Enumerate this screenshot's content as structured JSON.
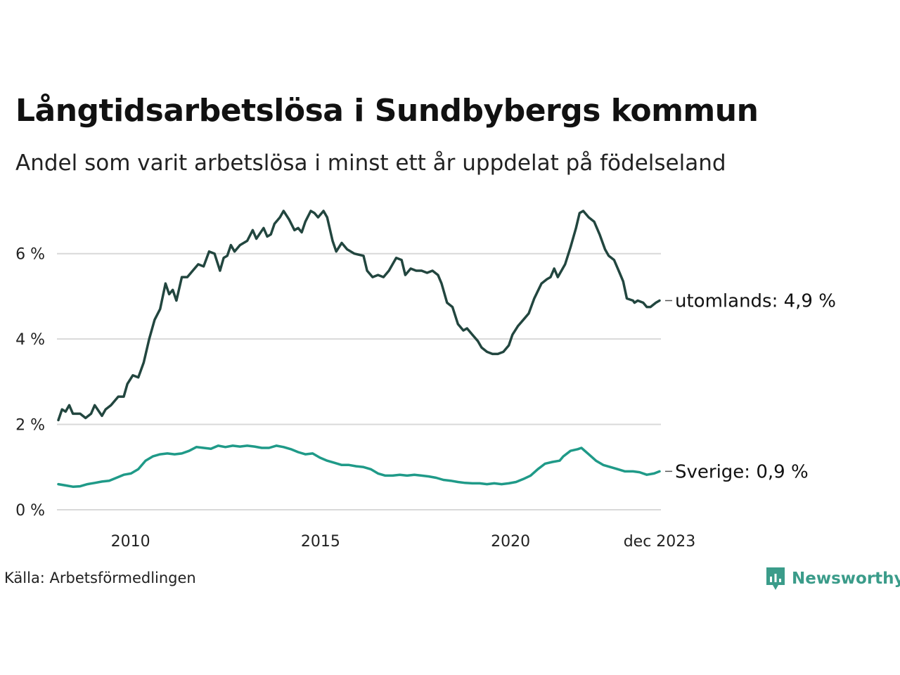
{
  "title": "Långtidsarbetslösa i Sundbybergs kommun",
  "subtitle": "Andel som varit arbetslösa i minst ett år uppdelat på födelseland",
  "source": "Källa: Arbetsförmedlingen",
  "brand": "Newsworthy",
  "colors": {
    "utomlands": "#22463f",
    "sverige": "#1f9a88",
    "grid": "#d9d9d9",
    "brand": "#3b9c8a"
  },
  "chart_data": {
    "type": "line",
    "title": "Långtidsarbetslösa i Sundbybergs kommun",
    "xlabel": "",
    "ylabel": "",
    "xlim": [
      2008.1,
      2023.92
    ],
    "ylim": [
      0,
      7
    ],
    "y_ticks": [
      0,
      2,
      4,
      6
    ],
    "y_tick_labels": [
      "0 %",
      "2 %",
      "4 %",
      "6 %"
    ],
    "x_ticks": [
      2010,
      2015,
      2020,
      2023.92
    ],
    "x_tick_labels": [
      "2010",
      "2015",
      "2020",
      "dec 2023"
    ],
    "grid": true,
    "series": [
      {
        "name": "utomlands",
        "end_label": "utomlands: 4,9 %",
        "points": [
          [
            2008.1,
            2.1
          ],
          [
            2008.2,
            2.35
          ],
          [
            2008.3,
            2.3
          ],
          [
            2008.4,
            2.45
          ],
          [
            2008.5,
            2.25
          ],
          [
            2008.7,
            2.25
          ],
          [
            2008.85,
            2.15
          ],
          [
            2009.0,
            2.25
          ],
          [
            2009.1,
            2.45
          ],
          [
            2009.3,
            2.2
          ],
          [
            2009.4,
            2.35
          ],
          [
            2009.55,
            2.45
          ],
          [
            2009.75,
            2.65
          ],
          [
            2009.9,
            2.65
          ],
          [
            2010.0,
            2.95
          ],
          [
            2010.15,
            3.15
          ],
          [
            2010.3,
            3.1
          ],
          [
            2010.45,
            3.45
          ],
          [
            2010.6,
            4.0
          ],
          [
            2010.75,
            4.45
          ],
          [
            2010.9,
            4.7
          ],
          [
            2011.05,
            5.3
          ],
          [
            2011.15,
            5.05
          ],
          [
            2011.25,
            5.15
          ],
          [
            2011.35,
            4.9
          ],
          [
            2011.5,
            5.45
          ],
          [
            2011.65,
            5.45
          ],
          [
            2011.8,
            5.6
          ],
          [
            2011.95,
            5.75
          ],
          [
            2012.1,
            5.7
          ],
          [
            2012.25,
            6.05
          ],
          [
            2012.4,
            6.0
          ],
          [
            2012.55,
            5.6
          ],
          [
            2012.65,
            5.9
          ],
          [
            2012.75,
            5.95
          ],
          [
            2012.85,
            6.2
          ],
          [
            2012.95,
            6.05
          ],
          [
            2013.1,
            6.2
          ],
          [
            2013.3,
            6.3
          ],
          [
            2013.45,
            6.55
          ],
          [
            2013.55,
            6.35
          ],
          [
            2013.75,
            6.6
          ],
          [
            2013.85,
            6.4
          ],
          [
            2013.95,
            6.45
          ],
          [
            2014.05,
            6.7
          ],
          [
            2014.2,
            6.85
          ],
          [
            2014.3,
            7.0
          ],
          [
            2014.45,
            6.8
          ],
          [
            2014.6,
            6.55
          ],
          [
            2014.7,
            6.6
          ],
          [
            2014.8,
            6.5
          ],
          [
            2014.9,
            6.75
          ],
          [
            2015.05,
            7.0
          ],
          [
            2015.15,
            6.95
          ],
          [
            2015.25,
            6.85
          ],
          [
            2015.4,
            7.0
          ],
          [
            2015.5,
            6.85
          ],
          [
            2015.65,
            6.3
          ],
          [
            2015.75,
            6.05
          ],
          [
            2015.9,
            6.25
          ],
          [
            2016.05,
            6.1
          ],
          [
            2016.25,
            6.0
          ],
          [
            2016.5,
            5.95
          ],
          [
            2016.6,
            5.6
          ],
          [
            2016.75,
            5.45
          ],
          [
            2016.9,
            5.5
          ],
          [
            2017.05,
            5.45
          ],
          [
            2017.2,
            5.6
          ],
          [
            2017.4,
            5.9
          ],
          [
            2017.55,
            5.85
          ],
          [
            2017.65,
            5.5
          ],
          [
            2017.8,
            5.65
          ],
          [
            2017.95,
            5.6
          ],
          [
            2018.1,
            5.6
          ],
          [
            2018.25,
            5.55
          ],
          [
            2018.4,
            5.6
          ],
          [
            2018.55,
            5.5
          ],
          [
            2018.65,
            5.3
          ],
          [
            2018.8,
            4.85
          ],
          [
            2018.95,
            4.75
          ],
          [
            2019.1,
            4.35
          ],
          [
            2019.25,
            4.2
          ],
          [
            2019.35,
            4.25
          ],
          [
            2019.5,
            4.1
          ],
          [
            2019.65,
            3.95
          ],
          [
            2019.75,
            3.8
          ],
          [
            2019.9,
            3.7
          ],
          [
            2020.05,
            3.65
          ],
          [
            2020.2,
            3.65
          ],
          [
            2020.35,
            3.7
          ],
          [
            2020.5,
            3.85
          ],
          [
            2020.6,
            4.1
          ],
          [
            2020.75,
            4.3
          ],
          [
            2020.9,
            4.45
          ],
          [
            2021.05,
            4.6
          ],
          [
            2021.2,
            4.95
          ],
          [
            2021.4,
            5.3
          ],
          [
            2021.55,
            5.4
          ],
          [
            2021.65,
            5.45
          ],
          [
            2021.75,
            5.65
          ],
          [
            2021.85,
            5.45
          ],
          [
            2022.05,
            5.75
          ],
          [
            2022.2,
            6.15
          ],
          [
            2022.35,
            6.6
          ],
          [
            2022.45,
            6.95
          ],
          [
            2022.55,
            7.0
          ],
          [
            2022.7,
            6.85
          ],
          [
            2022.85,
            6.75
          ],
          [
            2023.0,
            6.45
          ],
          [
            2023.15,
            6.1
          ],
          [
            2023.25,
            5.95
          ],
          [
            2023.4,
            5.85
          ],
          [
            2023.55,
            5.55
          ],
          [
            2023.65,
            5.35
          ],
          [
            2023.75,
            4.95
          ],
          [
            2023.92,
            4.9
          ],
          [
            2023.96,
            4.85
          ],
          [
            2024.05,
            4.9
          ],
          [
            2024.2,
            4.85
          ],
          [
            2024.3,
            4.75
          ],
          [
            2024.4,
            4.75
          ],
          [
            2024.55,
            4.85
          ],
          [
            2024.65,
            4.9
          ]
        ]
      },
      {
        "name": "Sverige",
        "end_label": "Sverige: 0,9 %",
        "points": [
          [
            2008.1,
            0.6
          ],
          [
            2008.3,
            0.57
          ],
          [
            2008.5,
            0.54
          ],
          [
            2008.7,
            0.55
          ],
          [
            2008.9,
            0.6
          ],
          [
            2009.1,
            0.63
          ],
          [
            2009.3,
            0.66
          ],
          [
            2009.5,
            0.68
          ],
          [
            2009.7,
            0.75
          ],
          [
            2009.9,
            0.82
          ],
          [
            2010.1,
            0.85
          ],
          [
            2010.3,
            0.95
          ],
          [
            2010.5,
            1.15
          ],
          [
            2010.7,
            1.25
          ],
          [
            2010.9,
            1.3
          ],
          [
            2011.1,
            1.32
          ],
          [
            2011.3,
            1.3
          ],
          [
            2011.5,
            1.32
          ],
          [
            2011.7,
            1.38
          ],
          [
            2011.9,
            1.47
          ],
          [
            2012.1,
            1.45
          ],
          [
            2012.3,
            1.43
          ],
          [
            2012.5,
            1.5
          ],
          [
            2012.7,
            1.47
          ],
          [
            2012.9,
            1.5
          ],
          [
            2013.1,
            1.48
          ],
          [
            2013.3,
            1.5
          ],
          [
            2013.5,
            1.48
          ],
          [
            2013.7,
            1.45
          ],
          [
            2013.9,
            1.45
          ],
          [
            2014.1,
            1.5
          ],
          [
            2014.3,
            1.47
          ],
          [
            2014.5,
            1.42
          ],
          [
            2014.7,
            1.35
          ],
          [
            2014.9,
            1.3
          ],
          [
            2015.1,
            1.32
          ],
          [
            2015.3,
            1.22
          ],
          [
            2015.5,
            1.15
          ],
          [
            2015.7,
            1.1
          ],
          [
            2015.9,
            1.05
          ],
          [
            2016.1,
            1.05
          ],
          [
            2016.3,
            1.02
          ],
          [
            2016.5,
            1.0
          ],
          [
            2016.7,
            0.95
          ],
          [
            2016.9,
            0.85
          ],
          [
            2017.1,
            0.8
          ],
          [
            2017.3,
            0.8
          ],
          [
            2017.5,
            0.82
          ],
          [
            2017.7,
            0.8
          ],
          [
            2017.9,
            0.82
          ],
          [
            2018.1,
            0.8
          ],
          [
            2018.3,
            0.78
          ],
          [
            2018.5,
            0.75
          ],
          [
            2018.7,
            0.7
          ],
          [
            2018.9,
            0.68
          ],
          [
            2019.1,
            0.65
          ],
          [
            2019.3,
            0.63
          ],
          [
            2019.5,
            0.62
          ],
          [
            2019.7,
            0.62
          ],
          [
            2019.9,
            0.6
          ],
          [
            2020.1,
            0.62
          ],
          [
            2020.3,
            0.6
          ],
          [
            2020.5,
            0.62
          ],
          [
            2020.7,
            0.65
          ],
          [
            2020.9,
            0.72
          ],
          [
            2021.1,
            0.8
          ],
          [
            2021.3,
            0.95
          ],
          [
            2021.5,
            1.08
          ],
          [
            2021.7,
            1.12
          ],
          [
            2021.9,
            1.15
          ],
          [
            2022.0,
            1.25
          ],
          [
            2022.2,
            1.38
          ],
          [
            2022.4,
            1.42
          ],
          [
            2022.5,
            1.45
          ],
          [
            2022.7,
            1.3
          ],
          [
            2022.9,
            1.15
          ],
          [
            2023.1,
            1.05
          ],
          [
            2023.3,
            1.0
          ],
          [
            2023.5,
            0.95
          ],
          [
            2023.7,
            0.9
          ],
          [
            2023.92,
            0.9
          ],
          [
            2024.1,
            0.88
          ],
          [
            2024.3,
            0.82
          ],
          [
            2024.5,
            0.85
          ],
          [
            2024.65,
            0.9
          ]
        ]
      }
    ]
  }
}
